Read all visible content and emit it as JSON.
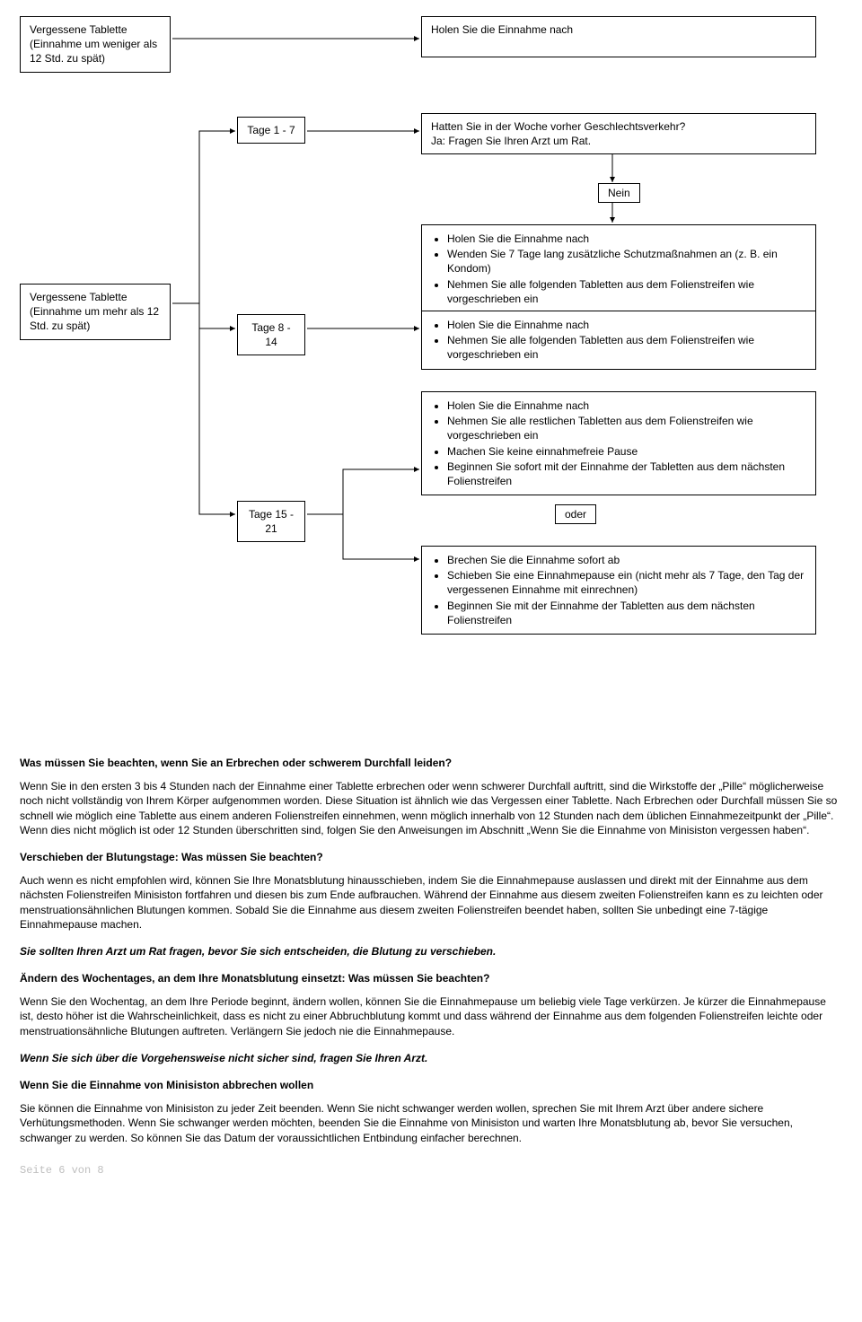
{
  "flow": {
    "box_left1": "Vergessene Tablette\n(Einnahme um weniger als\n12 Std. zu spät)",
    "box_left2": "Vergessene Tablette\n(Einnahme um mehr als 12\nStd. zu spät)",
    "box_right1": "Holen Sie die Einnahme nach",
    "box_right2": "Hatten Sie in der Woche vorher Geschlechtsverkehr?\nJa: Fragen Sie Ihren Arzt um Rat.",
    "label_nein": "Nein",
    "label_tage1": "Tage 1 - 7",
    "label_tage8": "Tage 8 - 14",
    "label_tage15": "Tage 15 - 21",
    "label_oder": "oder",
    "box_list1": [
      "Holen Sie die Einnahme nach",
      "Wenden Sie 7 Tage lang zusätzliche Schutzmaßnahmen an (z. B. ein Kondom)",
      "Nehmen Sie alle folgenden Tabletten aus dem Folienstreifen wie vorgeschrieben ein"
    ],
    "box_list2": [
      "Holen Sie die Einnahme nach",
      "Nehmen Sie alle folgenden Tabletten aus dem Folienstreifen wie vorgeschrieben ein"
    ],
    "box_list3": [
      "Holen Sie die Einnahme nach",
      "Nehmen Sie alle restlichen Tabletten aus dem Folienstreifen wie vorgeschrieben ein",
      "Machen Sie keine einnahmefreie Pause",
      "Beginnen Sie sofort mit der Einnahme der Tabletten aus dem nächsten Folienstreifen"
    ],
    "box_list4": [
      "Brechen Sie die Einnahme sofort ab",
      "Schieben Sie eine Einnahmepause ein (nicht mehr als 7 Tage, den Tag der vergessenen Einnahme mit einrechnen)",
      "Beginnen Sie mit der Einnahme der Tabletten aus dem nächsten Folienstreifen"
    ],
    "colors": {
      "stroke": "#000000",
      "bg": "#ffffff"
    }
  },
  "body": {
    "h1": "Was müssen Sie beachten, wenn Sie an Erbrechen oder schwerem Durchfall leiden?",
    "p1": "Wenn Sie in den ersten 3 bis 4 Stunden nach der Einnahme einer Tablette erbrechen oder wenn schwerer Durchfall auftritt, sind die Wirkstoffe der „Pille“ möglicherweise noch nicht vollständig von Ihrem Körper aufgenommen worden. Diese Situation ist ähnlich wie das Vergessen einer Tablette. Nach Erbrechen oder Durchfall müssen Sie so schnell wie möglich eine Tablette aus einem anderen Folienstreifen einnehmen, wenn möglich innerhalb von 12 Stunden nach dem üblichen Einnahmezeitpunkt der „Pille“. Wenn dies nicht möglich ist oder 12 Stunden überschritten sind, folgen Sie den Anweisungen im Abschnitt „Wenn Sie die Einnahme von Minisiston vergessen haben“.",
    "h2": "Verschieben der Blutungstage: Was müssen Sie beachten?",
    "p2": "Auch wenn es nicht empfohlen wird, können Sie Ihre Monatsblutung hinausschieben, indem Sie die Einnahmepause auslassen und direkt mit der Einnahme aus dem nächsten Folienstreifen Minisiston fortfahren und diesen bis zum Ende aufbrauchen. Während der Einnahme aus diesem zweiten Folienstreifen kann es zu leichten oder menstruationsähnlichen Blutungen kommen. Sobald Sie die Einnahme aus diesem zweiten Folienstreifen beendet haben, sollten Sie unbedingt eine 7-tägige Einnahmepause machen.",
    "h3": "Sie sollten Ihren Arzt um Rat fragen, bevor Sie sich entscheiden, die Blutung zu verschieben.",
    "h4": "Ändern des Wochentages, an dem Ihre Monatsblutung einsetzt: Was müssen Sie beachten?",
    "p3": "Wenn Sie den Wochentag, an dem Ihre Periode beginnt, ändern wollen, können Sie die Einnahmepause um beliebig viele Tage verkürzen. Je kürzer die Einnahmepause ist, desto höher ist die Wahrscheinlichkeit, dass es nicht zu einer Abbruchblutung kommt und dass während der Einnahme aus dem folgenden Folienstreifen leichte oder menstruationsähnliche Blutungen auftreten. Verlängern Sie jedoch nie die Einnahmepause.",
    "h5": "Wenn Sie sich über die Vorgehensweise nicht sicher sind, fragen Sie Ihren Arzt.",
    "h6": "Wenn Sie die Einnahme von Minisiston abbrechen wollen",
    "p4": "Sie können die Einnahme von Minisiston zu jeder Zeit beenden. Wenn Sie nicht schwanger werden wollen, sprechen Sie mit Ihrem Arzt über andere sichere Verhütungsmethoden. Wenn Sie schwanger werden möchten, beenden Sie die Einnahme von Minisiston und warten Ihre Monatsblutung ab, bevor Sie versuchen, schwanger zu werden. So können Sie das Datum der voraussichtlichen Entbindung einfacher berechnen.",
    "footer": "Seite 6 von 8"
  }
}
